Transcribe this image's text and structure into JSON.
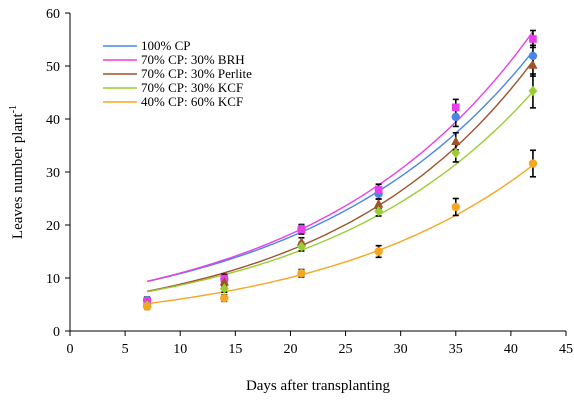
{
  "chart_data": {
    "type": "scatter",
    "xlabel": "Days after transplanting",
    "ylabel": "Leaves number plant",
    "ylabel_sup": "-1",
    "xlim": [
      0,
      45
    ],
    "ylim": [
      0,
      60
    ],
    "xticks": [
      0,
      5,
      10,
      15,
      20,
      25,
      30,
      35,
      40,
      45
    ],
    "yticks": [
      0,
      10,
      20,
      30,
      40,
      50,
      60
    ],
    "grid": false,
    "legend_position": "top-left",
    "x": [
      7,
      14,
      21,
      28,
      35,
      42
    ],
    "series": [
      {
        "name": "100% CP",
        "color": "#4a86e8",
        "marker": "circle",
        "values": [
          5.8,
          9.8,
          19.3,
          25.9,
          40.4,
          51.9
        ],
        "errors": [
          0.6,
          0.7,
          0.8,
          1.0,
          1.8,
          2.0
        ],
        "trend": {
          "a": 6.6,
          "b": 0.0495
        }
      },
      {
        "name": "70% CP: 30% BRH",
        "color": "#e83fe8",
        "marker": "square",
        "values": [
          5.7,
          9.9,
          19.1,
          26.7,
          42.2,
          55.1
        ],
        "errors": [
          0.6,
          0.8,
          0.8,
          1.0,
          1.5,
          1.6
        ],
        "trend": {
          "a": 6.55,
          "b": 0.0513
        }
      },
      {
        "name": "70% CP: 30% Perlite",
        "color": "#a0522d",
        "marker": "triangle",
        "values": [
          5.2,
          9.3,
          16.8,
          24.0,
          35.8,
          50.2
        ],
        "errors": [
          0.6,
          0.8,
          0.8,
          0.9,
          1.6,
          2.1
        ],
        "trend": {
          "a": 5.1,
          "b": 0.0548
        }
      },
      {
        "name": "70% CP: 30% KCF",
        "color": "#9acd32",
        "marker": "diamond",
        "values": [
          4.9,
          8.0,
          15.9,
          22.6,
          33.6,
          45.3
        ],
        "errors": [
          0.5,
          0.7,
          0.8,
          0.9,
          1.7,
          3.2
        ],
        "trend": {
          "a": 5.15,
          "b": 0.0517
        }
      },
      {
        "name": "40% CP: 60% KCF",
        "color": "#f5a623",
        "marker": "circle",
        "values": [
          4.6,
          6.2,
          10.9,
          15.0,
          23.4,
          31.6
        ],
        "errors": [
          0.5,
          0.6,
          0.7,
          1.1,
          1.6,
          2.5
        ],
        "trend": {
          "a": 3.6,
          "b": 0.0515
        }
      }
    ]
  }
}
